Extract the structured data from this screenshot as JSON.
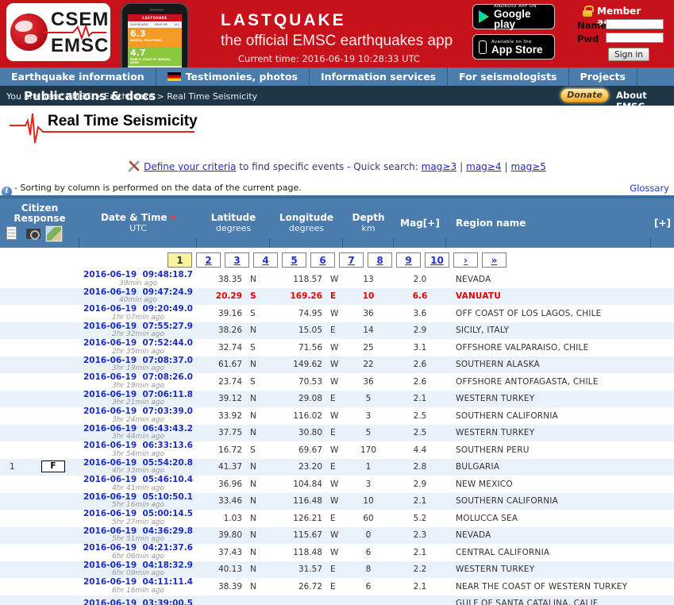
{
  "colors": {
    "banner_red": "#C8121B",
    "header_blue": "#4A7CAD",
    "breadcrumb_dark": "#1F3647",
    "row_alt_blue": "#E9F1FB",
    "link_blue": "#1C2DC2",
    "alert_red": "#E60000",
    "current_page_yellow": "#FBF3A0",
    "donate_gold": "#F6A81C"
  },
  "banner": {
    "logo_line1": "CSEM",
    "logo_line2": "EMSC",
    "app_title": "LASTQUAKE",
    "app_subtitle": "the official EMSC earthquakes app",
    "current_time": "Current time: 2016-06-19 10:28:33 UTC",
    "phone": {
      "app_bar": "LASTQUAKE",
      "tabs": [
        "DASHBOARD",
        "NEAR ME",
        "ALL"
      ],
      "items": [
        {
          "mag": "6.3",
          "region": "NEGROS, PHILIPPINES",
          "color": "#F59A23"
        },
        {
          "mag": "4.7",
          "region": "NEAR E. COAST OF HONSHU, JAPAN",
          "color": "#8CC63E"
        }
      ]
    },
    "google_play": {
      "line1": "ANDROID APP ON",
      "line2": "Google play"
    },
    "app_store": {
      "line1": "Available on the",
      "line2": "App Store"
    },
    "member": {
      "title": "Member access",
      "name_label": "Name",
      "pwd_label": "Pwd",
      "name_value": "",
      "pwd_value": "",
      "sign_in": "Sign in"
    }
  },
  "nav": {
    "items": [
      {
        "label": "Earthquake information",
        "flag": false
      },
      {
        "label": "Testimonies, photos",
        "flag": true
      },
      {
        "label": "Information services",
        "flag": false
      },
      {
        "label": "For seismologists",
        "flag": false
      },
      {
        "label": "Projects",
        "flag": false
      }
    ],
    "overflow_item": "Publications & docs"
  },
  "breadcrumb": {
    "text": "You are here: EMSC > Earthquake > Real Time Seismicity",
    "donate": "Donate",
    "about": "About EMSC"
  },
  "page": {
    "title": "Real Time Seismicity",
    "criteria_link": "Define your criteria",
    "criteria_text": " to find specific events - Quick search: ",
    "quick_links": [
      "mag≥3",
      "mag≥4",
      "mag≥5"
    ],
    "separator": "|",
    "sorting_note": "- Sorting by column is performed on the data of the current page.",
    "glossary": "Glossary"
  },
  "table": {
    "headers": {
      "citizen_line1": "Citizen",
      "citizen_line2": "Response",
      "date": "Date & Time",
      "sort_indicator": "▼",
      "date_sub": "UTC",
      "lat": "Latitude",
      "lat_sub": "degrees",
      "lon": "Longitude",
      "lon_sub": "degrees",
      "depth": "Depth",
      "depth_sub": "km",
      "mag": "Mag[+]",
      "region": "Region name",
      "plus": "[+]"
    },
    "pagination": [
      "1",
      "2",
      "3",
      "4",
      "5",
      "6",
      "7",
      "8",
      "9",
      "10",
      "›",
      "»"
    ],
    "current_page": "1",
    "rows": [
      {
        "citizen_count": "",
        "citizen_f": "",
        "date": "2016-06-19  09:48:18.7",
        "ago": "39min ago",
        "lat": "38.35",
        "lat_dir": "N",
        "lon": "118.57",
        "lon_dir": "W",
        "depth": "13",
        "mag": "2.0",
        "region": "NEVADA",
        "alert": false
      },
      {
        "citizen_count": "",
        "citizen_f": "",
        "date": "2016-06-19  09:47:24.9",
        "ago": "40min ago",
        "lat": "20.29",
        "lat_dir": "S",
        "lon": "169.26",
        "lon_dir": "E",
        "depth": "10",
        "mag": "6.6",
        "region": "VANUATU",
        "alert": true
      },
      {
        "citizen_count": "",
        "citizen_f": "",
        "date": "2016-06-19  09:20:49.0",
        "ago": "1hr 07min ago",
        "lat": "39.16",
        "lat_dir": "S",
        "lon": "74.95",
        "lon_dir": "W",
        "depth": "36",
        "mag": "3.6",
        "region": "OFF COAST OF LOS LAGOS, CHILE",
        "alert": false
      },
      {
        "citizen_count": "",
        "citizen_f": "",
        "date": "2016-06-19  07:55:27.9",
        "ago": "2hr 32min ago",
        "lat": "38.26",
        "lat_dir": "N",
        "lon": "15.05",
        "lon_dir": "E",
        "depth": "14",
        "mag": "2.9",
        "region": "SICILY, ITALY",
        "alert": false
      },
      {
        "citizen_count": "",
        "citizen_f": "",
        "date": "2016-06-19  07:52:44.0",
        "ago": "2hr 35min ago",
        "lat": "32.74",
        "lat_dir": "S",
        "lon": "71.56",
        "lon_dir": "W",
        "depth": "25",
        "mag": "3.1",
        "region": "OFFSHORE VALPARAISO, CHILE",
        "alert": false
      },
      {
        "citizen_count": "",
        "citizen_f": "",
        "date": "2016-06-19  07:08:37.0",
        "ago": "3hr 19min ago",
        "lat": "61.67",
        "lat_dir": "N",
        "lon": "149.62",
        "lon_dir": "W",
        "depth": "22",
        "mag": "2.6",
        "region": "SOUTHERN ALASKA",
        "alert": false
      },
      {
        "citizen_count": "",
        "citizen_f": "",
        "date": "2016-06-19  07:08:26.0",
        "ago": "3hr 19min ago",
        "lat": "23.74",
        "lat_dir": "S",
        "lon": "70.53",
        "lon_dir": "W",
        "depth": "36",
        "mag": "2.6",
        "region": "OFFSHORE ANTOFAGASTA, CHILE",
        "alert": false
      },
      {
        "citizen_count": "",
        "citizen_f": "",
        "date": "2016-06-19  07:06:11.8",
        "ago": "3hr 21min ago",
        "lat": "39.12",
        "lat_dir": "N",
        "lon": "29.08",
        "lon_dir": "E",
        "depth": "5",
        "mag": "2.1",
        "region": "WESTERN TURKEY",
        "alert": false
      },
      {
        "citizen_count": "",
        "citizen_f": "",
        "date": "2016-06-19  07:03:39.0",
        "ago": "3hr 24min ago",
        "lat": "33.92",
        "lat_dir": "N",
        "lon": "116.02",
        "lon_dir": "W",
        "depth": "3",
        "mag": "2.5",
        "region": "SOUTHERN CALIFORNIA",
        "alert": false
      },
      {
        "citizen_count": "",
        "citizen_f": "",
        "date": "2016-06-19  06:43:43.2",
        "ago": "3hr 44min ago",
        "lat": "37.75",
        "lat_dir": "N",
        "lon": "30.80",
        "lon_dir": "E",
        "depth": "5",
        "mag": "2.5",
        "region": "WESTERN TURKEY",
        "alert": false
      },
      {
        "citizen_count": "",
        "citizen_f": "",
        "date": "2016-06-19  06:33:13.6",
        "ago": "3hr 54min ago",
        "lat": "16.72",
        "lat_dir": "S",
        "lon": "69.67",
        "lon_dir": "W",
        "depth": "170",
        "mag": "4.4",
        "region": "SOUTHERN PERU",
        "alert": false
      },
      {
        "citizen_count": "1",
        "citizen_f": "F",
        "date": "2016-06-19  05:54:20.8",
        "ago": "4hr 33min ago",
        "lat": "41.37",
        "lat_dir": "N",
        "lon": "23.20",
        "lon_dir": "E",
        "depth": "1",
        "mag": "2.8",
        "region": "BULGARIA",
        "alert": false
      },
      {
        "citizen_count": "",
        "citizen_f": "",
        "date": "2016-06-19  05:46:10.4",
        "ago": "4hr 41min ago",
        "lat": "36.96",
        "lat_dir": "N",
        "lon": "104.84",
        "lon_dir": "W",
        "depth": "3",
        "mag": "2.9",
        "region": "NEW MEXICO",
        "alert": false
      },
      {
        "citizen_count": "",
        "citizen_f": "",
        "date": "2016-06-19  05:10:50.1",
        "ago": "5hr 16min ago",
        "lat": "33.46",
        "lat_dir": "N",
        "lon": "116.48",
        "lon_dir": "W",
        "depth": "10",
        "mag": "2.1",
        "region": "SOUTHERN CALIFORNIA",
        "alert": false
      },
      {
        "citizen_count": "",
        "citizen_f": "",
        "date": "2016-06-19  05:00:14.5",
        "ago": "5hr 27min ago",
        "lat": "1.03",
        "lat_dir": "N",
        "lon": "126.21",
        "lon_dir": "E",
        "depth": "60",
        "mag": "5.2",
        "region": "MOLUCCA SEA",
        "alert": false
      },
      {
        "citizen_count": "",
        "citizen_f": "",
        "date": "2016-06-19  04:36:29.8",
        "ago": "5hr 51min ago",
        "lat": "39.80",
        "lat_dir": "N",
        "lon": "115.67",
        "lon_dir": "W",
        "depth": "0",
        "mag": "2.3",
        "region": "NEVADA",
        "alert": false
      },
      {
        "citizen_count": "",
        "citizen_f": "",
        "date": "2016-06-19  04:21:37.6",
        "ago": "6hr 06min ago",
        "lat": "37.43",
        "lat_dir": "N",
        "lon": "118.48",
        "lon_dir": "W",
        "depth": "6",
        "mag": "2.1",
        "region": "CENTRAL CALIFORNIA",
        "alert": false
      },
      {
        "citizen_count": "",
        "citizen_f": "",
        "date": "2016-06-19  04:18:32.9",
        "ago": "6hr 09min ago",
        "lat": "40.13",
        "lat_dir": "N",
        "lon": "31.57",
        "lon_dir": "E",
        "depth": "8",
        "mag": "2.2",
        "region": "WESTERN TURKEY",
        "alert": false
      },
      {
        "citizen_count": "",
        "citizen_f": "",
        "date": "2016-06-19  04:11:11.4",
        "ago": "6hr 16min ago",
        "lat": "38.39",
        "lat_dir": "N",
        "lon": "26.72",
        "lon_dir": "E",
        "depth": "6",
        "mag": "2.1",
        "region": "NEAR THE COAST OF WESTERN TURKEY",
        "alert": false
      },
      {
        "citizen_count": "",
        "citizen_f": "",
        "date": "2016-06-19  03:39:00.5",
        "ago": "",
        "lat": "",
        "lat_dir": "",
        "lon": "",
        "lon_dir": "",
        "depth": "",
        "mag": "",
        "region": "GULF OF SANTA CATALINA, CALIF.",
        "alert": false
      }
    ]
  }
}
